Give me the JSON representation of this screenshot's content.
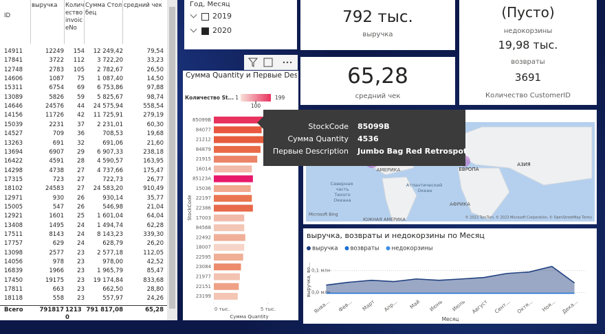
{
  "table": {
    "columns": [
      "ID",
      "выручка",
      "Количество invoiceNo",
      "Сумма Столбец",
      "средний чек"
    ],
    "rows": [
      [
        "14911",
        "12249",
        "154",
        "12 249,42",
        "79,54"
      ],
      [
        "17841",
        "3722",
        "112",
        "3 722,20",
        "33,23"
      ],
      [
        "12748",
        "2783",
        "105",
        "2 782,67",
        "26,50"
      ],
      [
        "14606",
        "1087",
        "75",
        "1 087,40",
        "14,50"
      ],
      [
        "15311",
        "6754",
        "69",
        "6 753,86",
        "97,88"
      ],
      [
        "13089",
        "5826",
        "59",
        "5 825,67",
        "98,74"
      ],
      [
        "14646",
        "24576",
        "44",
        "24 575,94",
        "558,54"
      ],
      [
        "14156",
        "11726",
        "42",
        "11 725,91",
        "279,19"
      ],
      [
        "15039",
        "2231",
        "37",
        "2 231,01",
        "60,30"
      ],
      [
        "14527",
        "709",
        "36",
        "708,53",
        "19,68"
      ],
      [
        "13263",
        "691",
        "32",
        "691,06",
        "21,60"
      ],
      [
        "13694",
        "6907",
        "29",
        "6 907,33",
        "238,18"
      ],
      [
        "16422",
        "4591",
        "28",
        "4 590,57",
        "163,95"
      ],
      [
        "14298",
        "4738",
        "27",
        "4 737,66",
        "175,47"
      ],
      [
        "17315",
        "723",
        "27",
        "722,73",
        "26,77"
      ],
      [
        "18102",
        "24583",
        "27",
        "24 583,20",
        "910,49"
      ],
      [
        "12971",
        "930",
        "26",
        "930,14",
        "35,77"
      ],
      [
        "15005",
        "547",
        "26",
        "546,98",
        "21,04"
      ],
      [
        "12921",
        "1601",
        "25",
        "1 601,04",
        "64,04"
      ],
      [
        "13408",
        "1495",
        "24",
        "1 494,74",
        "62,28"
      ],
      [
        "17511",
        "8143",
        "24",
        "8 143,23",
        "339,30"
      ],
      [
        "17757",
        "629",
        "24",
        "628,79",
        "26,20"
      ],
      [
        "13098",
        "2577",
        "23",
        "2 577,18",
        "112,05"
      ],
      [
        "14056",
        "978",
        "23",
        "978,00",
        "42,52"
      ],
      [
        "16839",
        "1966",
        "23",
        "1 965,79",
        "85,47"
      ],
      [
        "17450",
        "19175",
        "23",
        "19 174,84",
        "833,68"
      ],
      [
        "17811",
        "663",
        "23",
        "662,50",
        "28,80"
      ],
      [
        "18118",
        "558",
        "23",
        "557,97",
        "24,26"
      ]
    ],
    "total": [
      "Всего",
      "791817",
      "12130",
      "791 817,08",
      "65,28"
    ]
  },
  "slicer": {
    "title": "Год, Месяц",
    "items": [
      "2019",
      "2020"
    ],
    "checked": [
      false,
      true
    ]
  },
  "cards": [
    {
      "value": "792 тыс.",
      "label": "выручка"
    },
    {
      "value": "65,28",
      "label": "средний чек"
    }
  ],
  "multi_card": [
    {
      "value": "(Пусто)",
      "label": "недокорзины"
    },
    {
      "value": "19,98 тыс.",
      "label": "возвраты"
    },
    {
      "value": "3691",
      "label": "Количество CustomerID"
    }
  ],
  "chart_data": [
    {
      "type": "hbar",
      "title": "Сумма Quantity и Первые Description по StockCode",
      "legend_title": "Количество St...",
      "color_scale": {
        "min": 1,
        "max": 199,
        "marker": 100,
        "colors": [
          "#f8e0d8",
          "#e8335f"
        ]
      },
      "categories": [
        "85099B",
        "84077",
        "21212",
        "84879",
        "21915",
        "16014",
        "85123A",
        "15036",
        "22197",
        "22386",
        "17003",
        "84568",
        "22492",
        "18007",
        "22595",
        "23084",
        "21977",
        "22151",
        "23199"
      ],
      "values": [
        4536,
        4400,
        4600,
        4300,
        4000,
        3500,
        3600,
        3400,
        3500,
        3600,
        2800,
        2800,
        2900,
        2800,
        2700,
        2500,
        2400,
        2300,
        2200
      ],
      "colors": [
        "#e8335f",
        "#e8573e",
        "#e65c3c",
        "#e86a47",
        "#eb8468",
        "#f2b9a8",
        "#e8196b",
        "#f0a98f",
        "#e97650",
        "#e76a4a",
        "#f2bba9",
        "#f3c6b6",
        "#f0af98",
        "#f6d5c8",
        "#f0ae95",
        "#ec8c6d",
        "#f3c2b1",
        "#efa185",
        "#f4c5b4"
      ],
      "xlim": [
        0,
        5000
      ],
      "xticks": [
        {
          "value": 0,
          "label": "0 тыс."
        },
        {
          "value": 5000,
          "label": "5 тыс."
        }
      ],
      "x_label": "Сумма Quantity",
      "y_label": "StockCode"
    },
    {
      "type": "area",
      "title": "выручка, возвраты и недокорзины по Месяц",
      "categories": [
        "Янва...",
        "Фев...",
        "Март",
        "Апр...",
        "Май",
        "Июнь",
        "Июль",
        "Август",
        "Сент...",
        "Октя...",
        "Ноя...",
        "Дека..."
      ],
      "series": [
        {
          "name": "выручка",
          "color": "#1f3f7f",
          "values": [
            34000,
            47000,
            56000,
            50000,
            62000,
            56000,
            62000,
            69000,
            87000,
            94000,
            119000,
            44000
          ]
        },
        {
          "name": "возвраты",
          "color": "#1b6fd0",
          "values": [
            -3000,
            -3000,
            -3000,
            -3000,
            -3000,
            -3000,
            -3000,
            -3000,
            -3000,
            -3000,
            -3000,
            -3000
          ]
        },
        {
          "name": "недокорзины",
          "color": "#3d8ee8",
          "values": [
            null,
            null,
            null,
            null,
            null,
            null,
            null,
            null,
            null,
            null,
            null,
            null
          ]
        }
      ],
      "ylim": [
        -20000,
        130000
      ],
      "yticks": [
        {
          "value": 0,
          "label": "0,0 млн"
        },
        {
          "value": 100000,
          "label": "0,1 млн"
        }
      ],
      "x_label": "Месяц",
      "y_label": "выручка, во...",
      "grid": true
    }
  ],
  "tooltip": {
    "rows": [
      [
        "StockCode",
        "85099B"
      ],
      [
        "Сумма Quantity",
        "4536"
      ],
      [
        "Первые Description",
        "Jumbo Bag Red Retrospot"
      ]
    ]
  },
  "map": {
    "labels": [
      "АМЕРИКА",
      "ЕВРОПА",
      "АЗИЯ",
      "Северная часть Тихого Океана",
      "Атлантический Океан",
      "АФРИКА",
      "ЮЖНАЯ АМЕРИКА"
    ],
    "logo": "Microsoft Bing",
    "credit": "© 2023 TomTom, © 2023 Microsoft Corporation, © OpenStreetMap Terms"
  }
}
